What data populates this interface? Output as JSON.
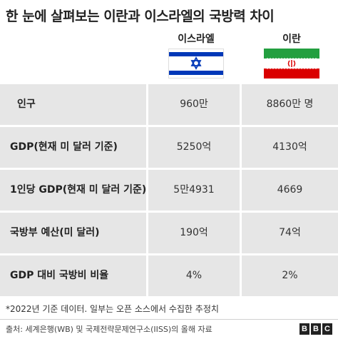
{
  "title": "한 눈에 살펴보는 이란과 이스라엘의 국방력 차이",
  "columns": {
    "israel": "이스라엘",
    "iran": "이란"
  },
  "colors": {
    "cell_bg": "#e6e6e6",
    "israel_blue": "#0038b8",
    "iran_green": "#239f40",
    "iran_red": "#da0000",
    "bbc_box": "#222222"
  },
  "chart_data": {
    "type": "table",
    "title": "한 눈에 살펴보는 이란과 이스라엘의 국방력 차이",
    "columns": [
      "이스라엘",
      "이란"
    ],
    "rows": [
      {
        "label": "인구",
        "israel": "960만",
        "iran": "8860만 명"
      },
      {
        "label": "GDP(현재 미 달러 기준)",
        "israel": "5250억",
        "iran": "4130억"
      },
      {
        "label": "1인당 GDP(현재 미 달러 기준)",
        "israel": "5만4931",
        "iran": "4669"
      },
      {
        "label": "국방부 예산(미 달러)",
        "israel": "190억",
        "iran": "74억"
      },
      {
        "label": "GDP 대비 국방비 비율",
        "israel": "4%",
        "iran": "2%"
      }
    ]
  },
  "note": "*2022년 기준 데이터. 일부는 오픈 소스에서 수집한 추정치",
  "source": "출처: 세계은행(WB) 및 국제전략문제연구소(IISS)의 올해 자료",
  "logo": [
    "B",
    "B",
    "C"
  ]
}
